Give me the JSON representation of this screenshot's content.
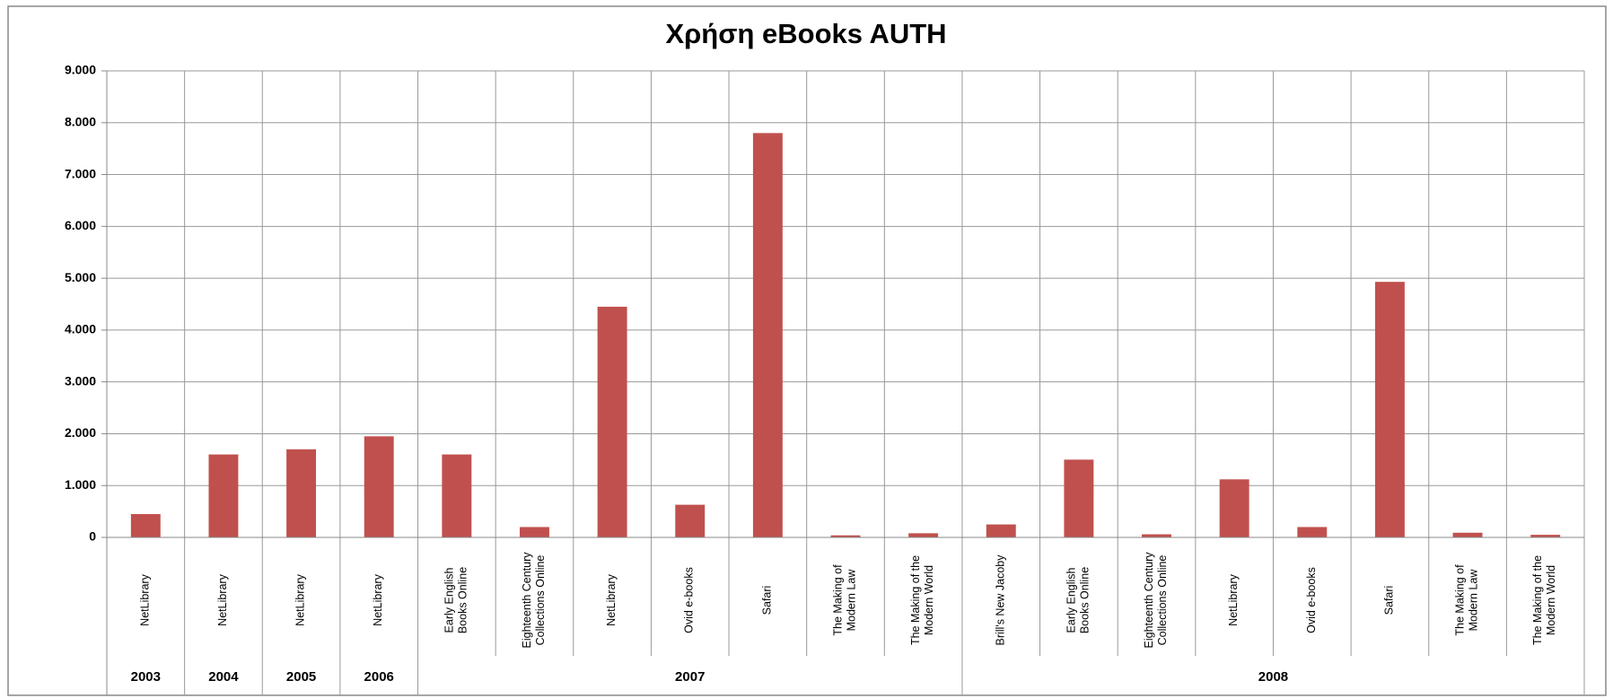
{
  "chart_data": {
    "type": "bar",
    "title": "Χρήση eBooks AUTH",
    "groups": [
      {
        "name": "2003",
        "categories": [
          "NetLibrary"
        ]
      },
      {
        "name": "2004",
        "categories": [
          "NetLibrary"
        ]
      },
      {
        "name": "2005",
        "categories": [
          "NetLibrary"
        ]
      },
      {
        "name": "2006",
        "categories": [
          "NetLibrary"
        ]
      },
      {
        "name": "2007",
        "categories": [
          "Early English\nBooks Online",
          "Eighteenth Century\nCollections Online",
          "NetLibrary",
          "Ovid e-books",
          "Safari",
          "The Making of\nModern Law",
          "The Making of the\nModern World"
        ]
      },
      {
        "name": "2008",
        "categories": [
          "Brill's New Jacoby",
          "Early English\nBooks Online",
          "Eighteenth Century\nCollections Online",
          "NetLibrary",
          "Ovid e-books",
          "Safari",
          "The Making of\nModern Law",
          "The Making of the\nModern World"
        ]
      }
    ],
    "values": [
      450,
      1600,
      1700,
      1950,
      1600,
      200,
      4450,
      630,
      7800,
      40,
      80,
      250,
      1500,
      60,
      1120,
      200,
      4930,
      90,
      50
    ],
    "color": "#c0504d",
    "ylim": [
      0,
      9000
    ],
    "yticks": [
      0,
      {
        "value": 1000,
        "label": "1.000"
      },
      {
        "value": 2000,
        "label": "2.000"
      },
      {
        "value": 3000,
        "label": "3.000"
      },
      {
        "value": 4000,
        "label": "4.000"
      },
      {
        "value": 5000,
        "label": "5.000"
      },
      {
        "value": 6000,
        "label": "6.000"
      },
      {
        "value": 7000,
        "label": "7.000"
      },
      {
        "value": 8000,
        "label": "8.000"
      },
      {
        "value": 9000,
        "label": "9.000"
      }
    ],
    "grid": true
  }
}
